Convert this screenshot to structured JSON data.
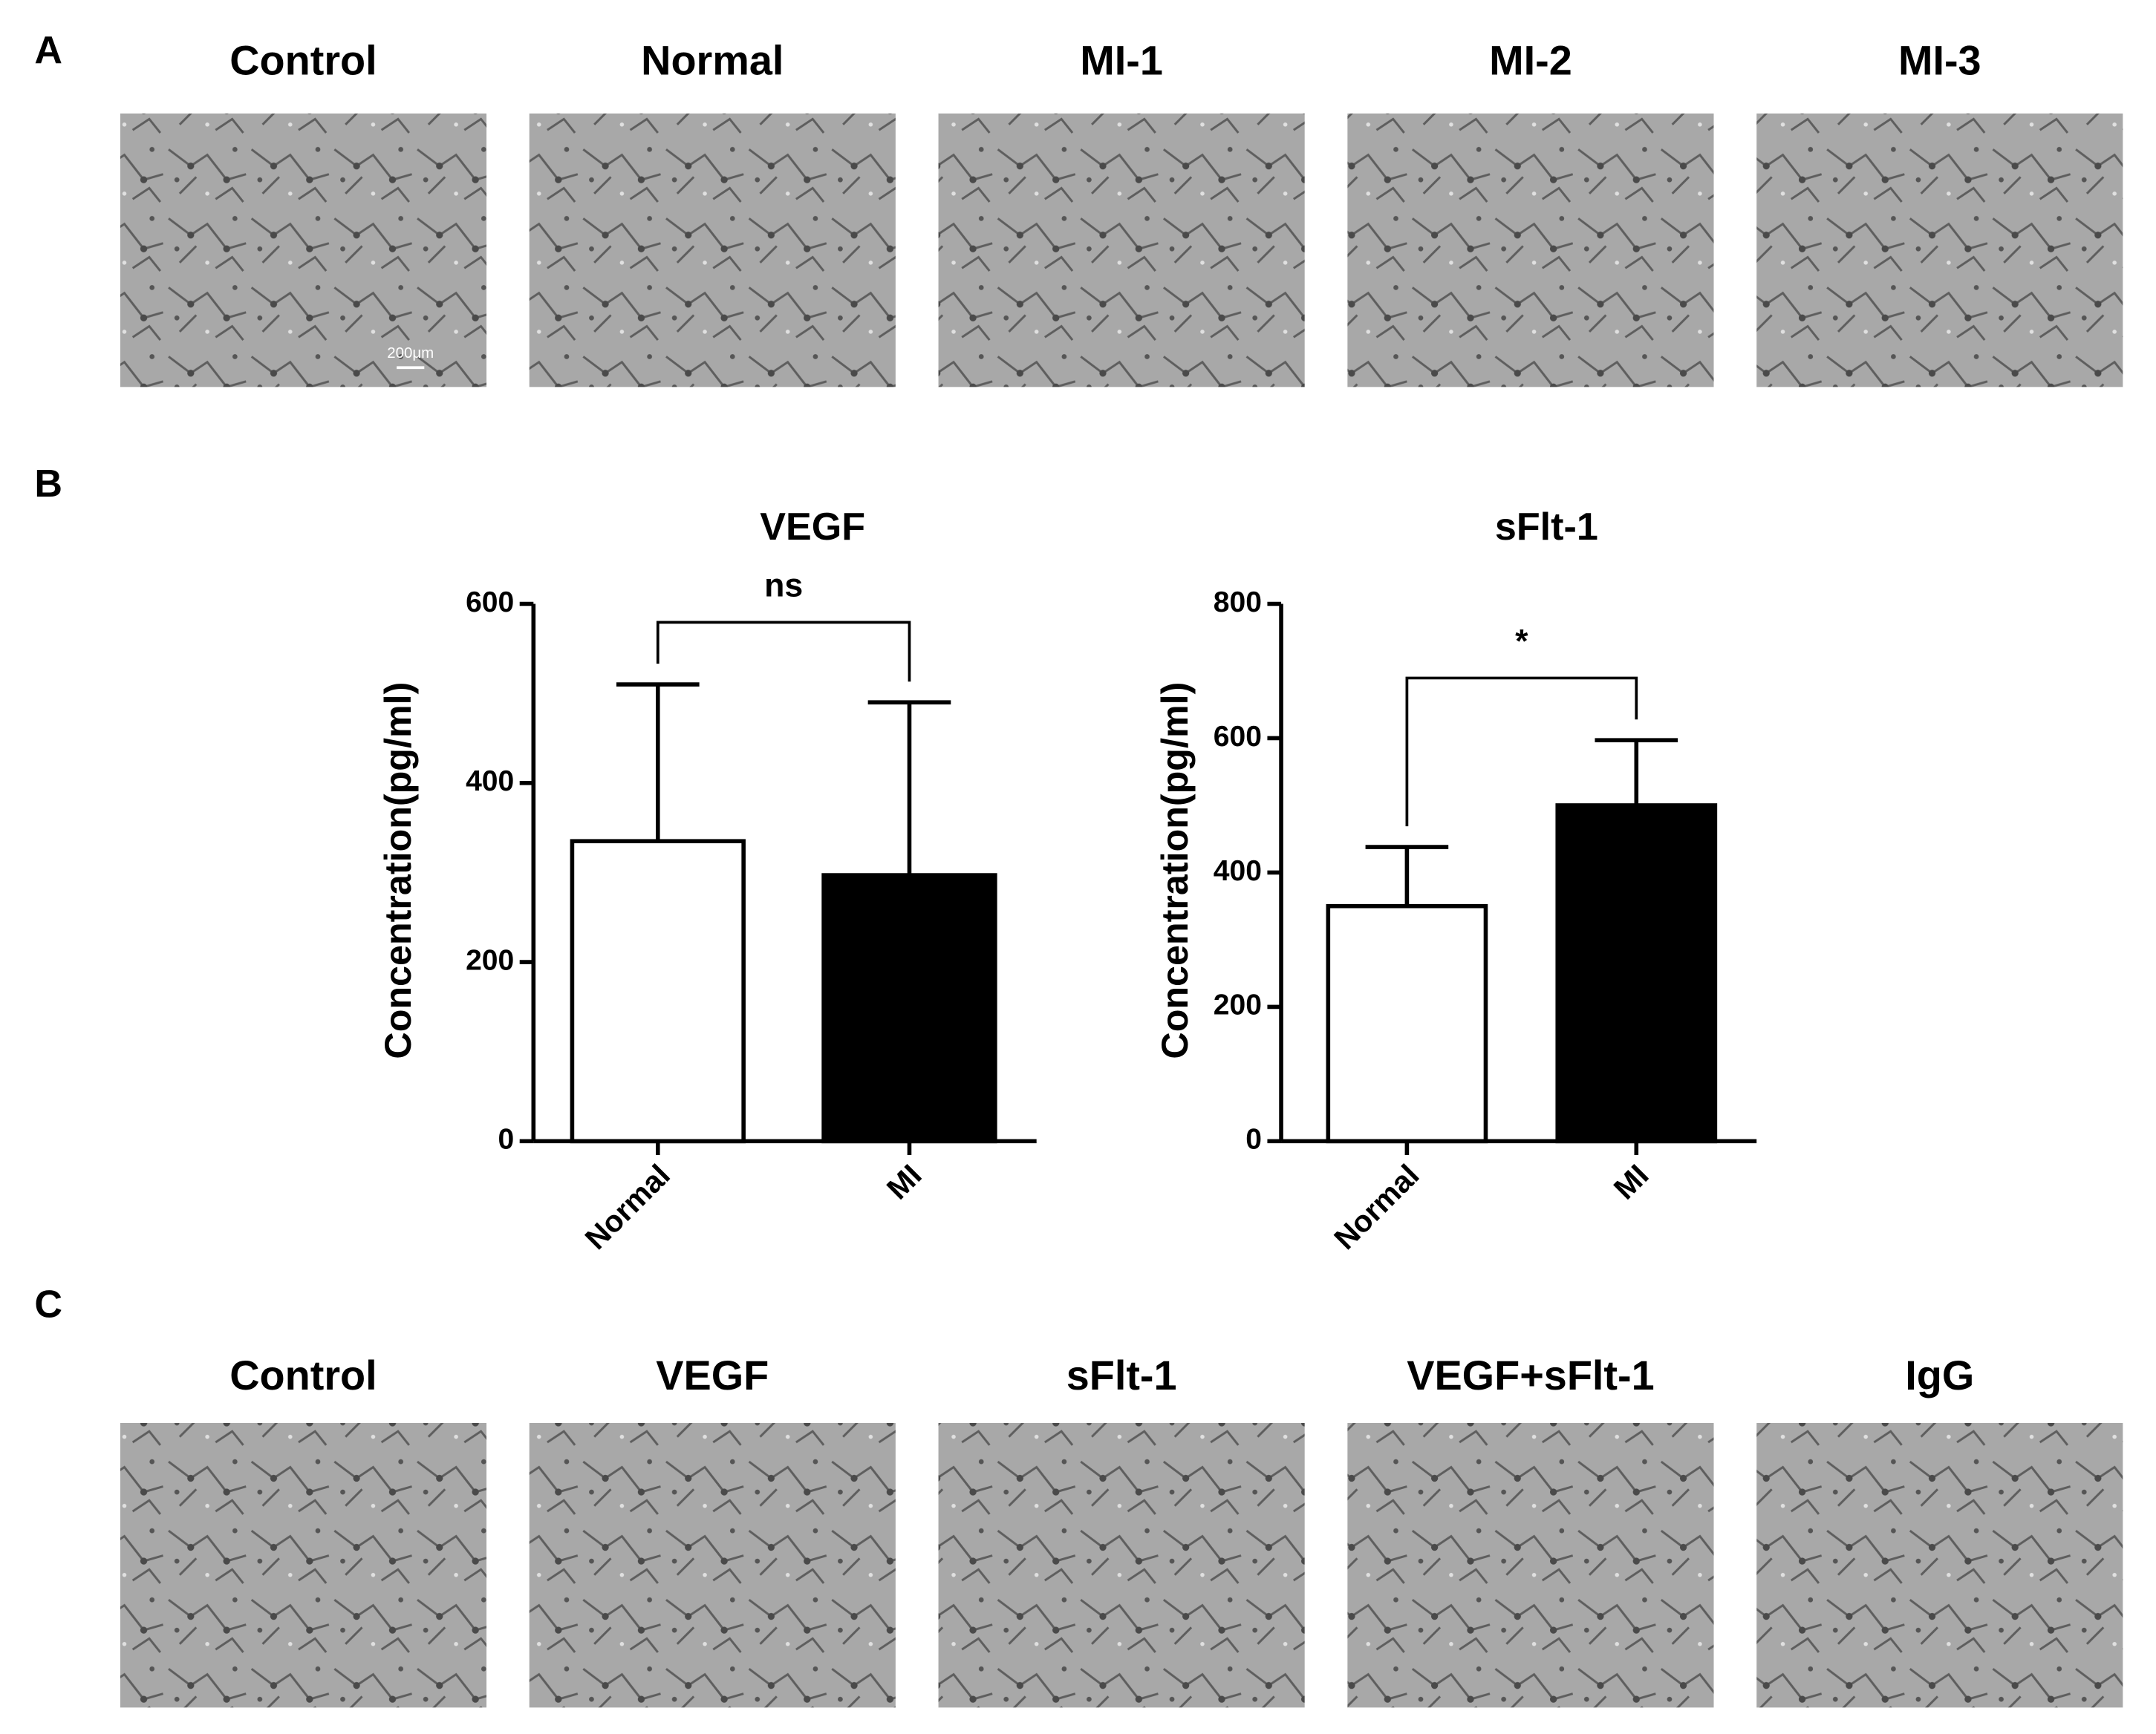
{
  "figure": {
    "panel_labels": [
      "A",
      "B",
      "C"
    ],
    "row_a": [
      "Control",
      "Normal",
      "MI-1",
      "MI-2",
      "MI-3"
    ],
    "scale_bar": "200μm",
    "row_c": [
      "Control",
      "VEGF",
      "sFlt-1",
      "VEGF+sFlt-1",
      "IgG"
    ]
  },
  "chart_data": [
    {
      "type": "bar",
      "title": "VEGF",
      "significance": "ns",
      "y_label": "Concentration(pg/ml)",
      "categories": [
        "Normal",
        "MI"
      ],
      "values": [
        335,
        297
      ],
      "errors": [
        175,
        193
      ],
      "colors": [
        "#ffffff",
        "#000000"
      ],
      "ylim": [
        0,
        600
      ],
      "yticks": [
        0,
        200,
        400,
        600
      ]
    },
    {
      "type": "bar",
      "title": "sFlt-1",
      "significance": "*",
      "y_label": "Concentration(pg/ml)",
      "categories": [
        "Normal",
        "MI"
      ],
      "values": [
        350,
        500
      ],
      "errors": [
        88,
        97
      ],
      "colors": [
        "#ffffff",
        "#000000"
      ],
      "ylim": [
        0,
        800
      ],
      "yticks": [
        0,
        200,
        400,
        600,
        800
      ]
    }
  ]
}
